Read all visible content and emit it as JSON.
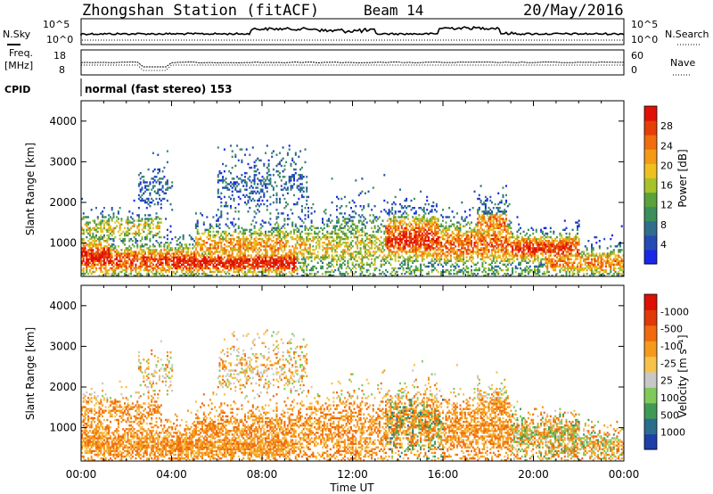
{
  "header": {
    "station": "Zhongshan Station (fitACF)",
    "beam": "Beam 14",
    "date": "20/May/2016"
  },
  "top_panels": {
    "nsky": {
      "label": "N.Sky",
      "ticks": [
        "10^5",
        "10^0"
      ],
      "right_label": "N.Search",
      "right_ticks": [
        "10^5",
        "10^0"
      ]
    },
    "freq": {
      "label_line1": "Freq.",
      "label_line2": "[MHz]",
      "ticks": [
        "18",
        "8"
      ],
      "right_label": "Nave",
      "right_ticks": [
        "60",
        "0"
      ]
    },
    "cpid": {
      "label": "CPID",
      "text": "normal (fast stereo) 153"
    }
  },
  "chart_data": [
    {
      "type": "heatmap",
      "name": "power",
      "ylabel": "Slant Range [km]",
      "ylim": [
        180,
        4500
      ],
      "yticks": [
        1000,
        2000,
        3000,
        4000
      ],
      "xlim": [
        0,
        24
      ],
      "colorbar": {
        "label": "Power [dB]",
        "range": [
          0,
          32
        ],
        "ticks": [
          "4",
          "8",
          "12",
          "16",
          "20",
          "24",
          "28"
        ],
        "colors": [
          "#1a28e6",
          "#244bb4",
          "#2f6e8c",
          "#3a8f5a",
          "#5aa23c",
          "#a8c22a",
          "#f0c020",
          "#f59a16",
          "#f06e0e",
          "#e63e08",
          "#e01006"
        ]
      }
    },
    {
      "type": "heatmap",
      "name": "velocity",
      "ylabel": "Slant Range [km]",
      "ylim": [
        180,
        4500
      ],
      "yticks": [
        1000,
        2000,
        3000,
        4000
      ],
      "xlim": [
        0,
        24
      ],
      "xticks": [
        "00:00",
        "04:00",
        "08:00",
        "12:00",
        "16:00",
        "20:00",
        "00:00"
      ],
      "xlabel": "Time UT",
      "colorbar": {
        "label": "Velocity [m s⁻¹]",
        "ticks": [
          "1000",
          "500",
          "100",
          "25",
          "-25",
          "-100",
          "-500",
          "-1000"
        ],
        "colors": [
          "#1d3fa8",
          "#2a6e8c",
          "#3f9a56",
          "#7fca5a",
          "#c8c8c8",
          "#f6c24a",
          "#f59a1c",
          "#f06a0e",
          "#e03a08",
          "#dd1005"
        ]
      }
    }
  ]
}
